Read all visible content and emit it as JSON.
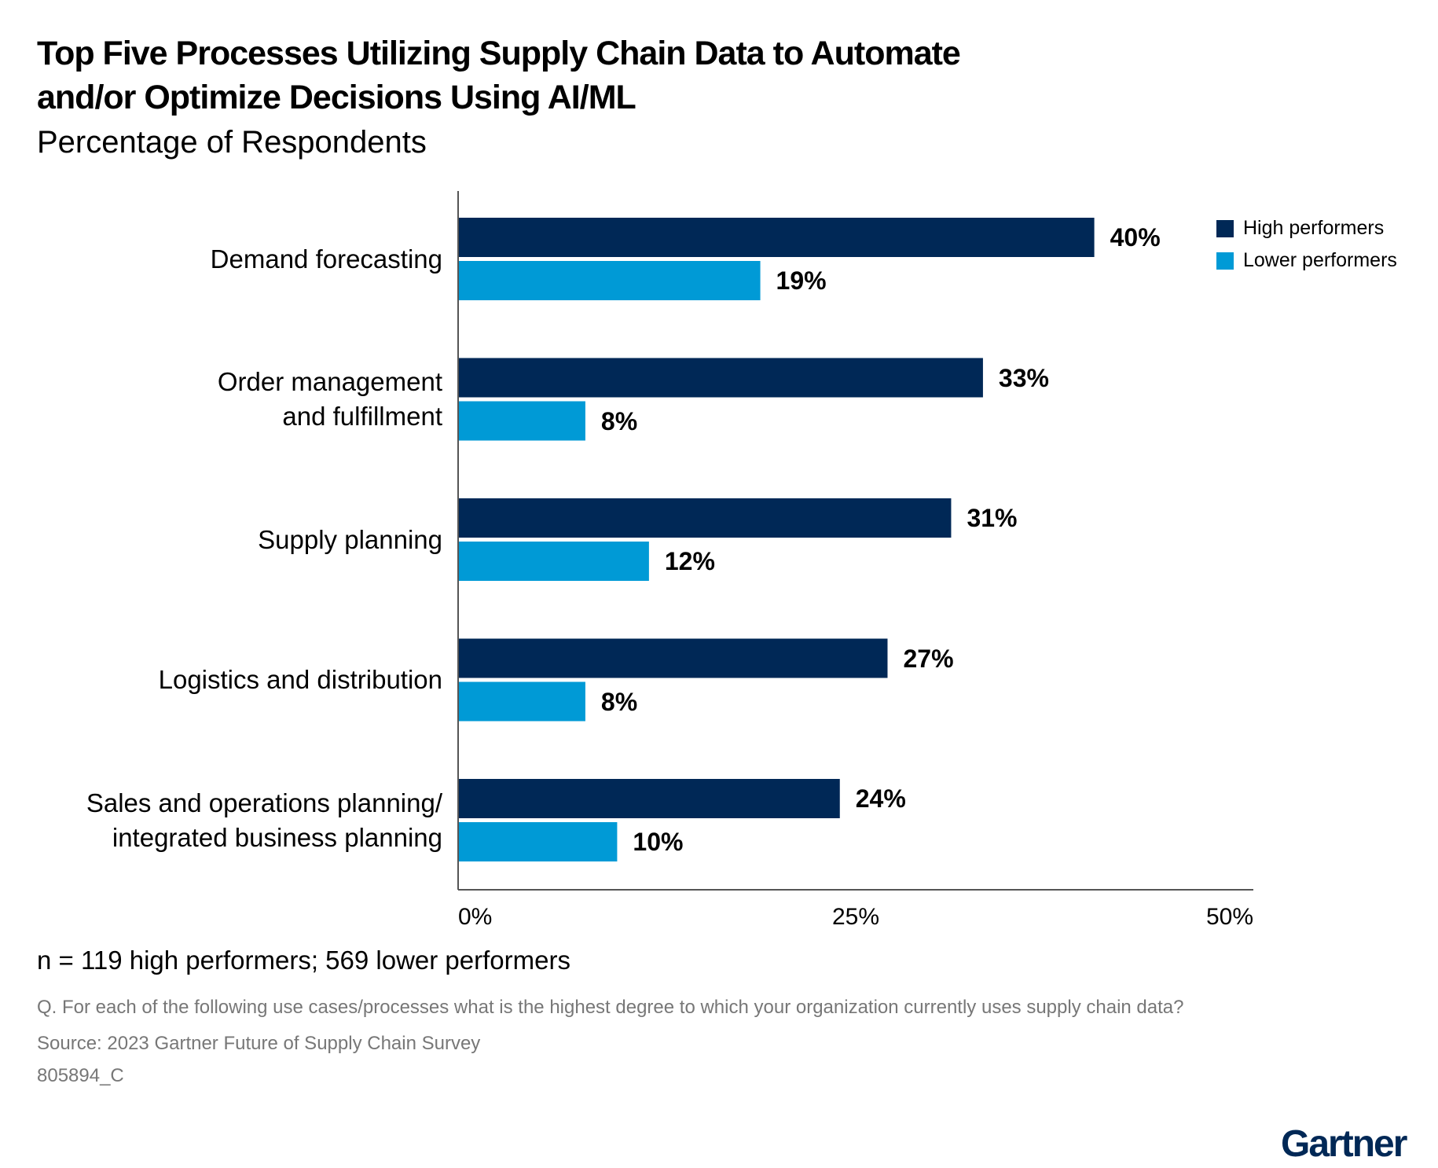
{
  "chart_data": {
    "type": "bar",
    "orientation": "horizontal",
    "title": "Top Five Processes Utilizing Supply Chain Data to Automate and/or Optimize Decisions Using AI/ML",
    "title_lines": [
      "Top Five Processes Utilizing Supply Chain Data to Automate",
      "and/or Optimize Decisions Using AI/ML"
    ],
    "subtitle": "Percentage of Respondents",
    "categories": [
      [
        "Demand forecasting"
      ],
      [
        "Order management",
        "and fulfillment"
      ],
      [
        "Supply planning"
      ],
      [
        "Logistics and distribution"
      ],
      [
        "Sales and operations planning/",
        "integrated business planning"
      ]
    ],
    "series": [
      {
        "name": "High performers",
        "color": "#002856",
        "values": [
          40,
          33,
          31,
          27,
          24
        ],
        "labels": [
          "40%",
          "33%",
          "31%",
          "27%",
          "24%"
        ]
      },
      {
        "name": "Lower performers",
        "color": "#009ad6",
        "values": [
          19,
          8,
          12,
          8,
          10
        ],
        "labels": [
          "19%",
          "8%",
          "12%",
          "8%",
          "10%"
        ]
      }
    ],
    "xlim": [
      0,
      50
    ],
    "xticks": [
      "0%",
      "25%",
      "50%"
    ],
    "grid": false,
    "legend_position": "top-right",
    "xlabel": "",
    "ylabel": ""
  },
  "notes": {
    "sample": "n = 119 high performers; 569 lower performers",
    "question": "Q. For each of the following use cases/processes what is the highest degree to which your organization currently uses supply chain data?",
    "source": "Source: 2023 Gartner Future of Supply Chain Survey",
    "id": "805894_C"
  },
  "logo": "Gartner"
}
